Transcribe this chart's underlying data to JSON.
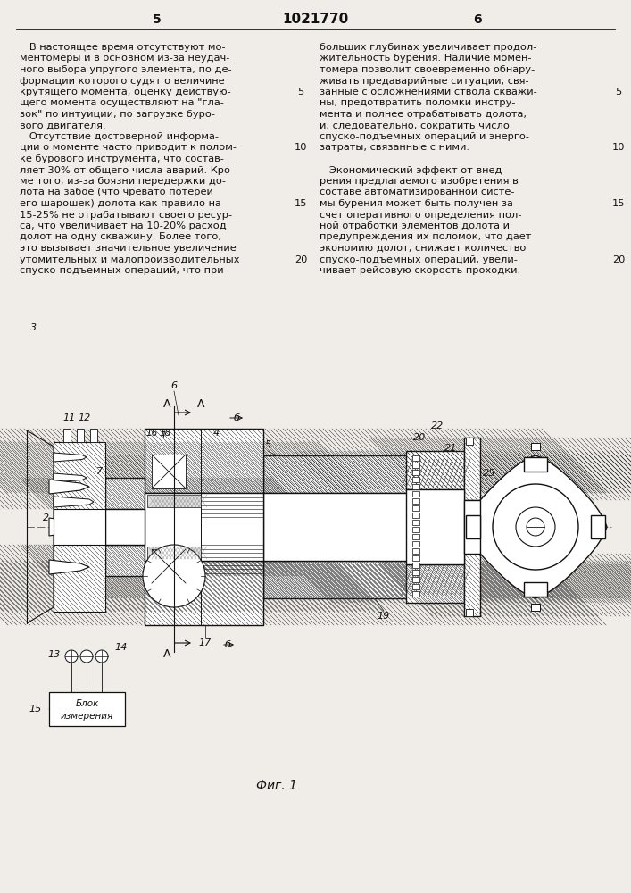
{
  "title": "1021770",
  "page_left": "5",
  "page_right": "6",
  "bg_color": "#f0ede8",
  "text_color": "#111111",
  "left_column_text": [
    "   В настоящее время отсутствуют мо-",
    "ментомеры и в основном из-за неудач-",
    "ного выбора упругого элемента, по де-",
    "формации которого судят о величине",
    "крутящего момента, оценку действую-",
    "щего момента осуществляют на \"гла-",
    "зок\" по интуиции, по загрузке буро-",
    "вого двигателя.",
    "   Отсутствие достоверной информа-",
    "ции о моменте часто приводит к полом-",
    "ке бурового инструмента, что состав-",
    "ляет 30% от общего числа аварий. Кро-",
    "ме того, из-за боязни передержки до-",
    "лота на забое (что чревато потерей",
    "его шарошек) долота как правило на",
    "15-25% не отрабатывают своего ресур-",
    "са, что увеличивает на 10-20% расход",
    "долот на одну скважину. Более того,",
    "это вызывает значительное увеличение",
    "утомительных и малопроизводительных",
    "спуско-подъемных операций, что при"
  ],
  "right_column_text": [
    "больших глубинах увеличивает продол-",
    "жительность бурения. Наличие момен-",
    "томера позволит своевременно обнару-",
    "живать предаварийные ситуации, свя-",
    "занные с осложнениями ствола скважи-",
    "ны, предотвратить поломки инстру-",
    "мента и полнее отрабатывать долота,",
    "и, следовательно, сократить число",
    "спуско-подъемных операций и энерго-",
    "затраты, связанные с ними.",
    "",
    "   Экономический эффект от внед-",
    "рения предлагаемого изобретения в",
    "составе автоматизированной систе-",
    "мы бурения может быть получен за",
    "счет оперативного определения пол-",
    "ной отработки элементов долота и",
    "предупреждения их поломок, что дает",
    "экономию долот, снижает количество",
    "спуско-подъемных операций, увели-",
    "чивает рейсовую скорость проходки."
  ],
  "fig_caption": "Фиг. 1"
}
